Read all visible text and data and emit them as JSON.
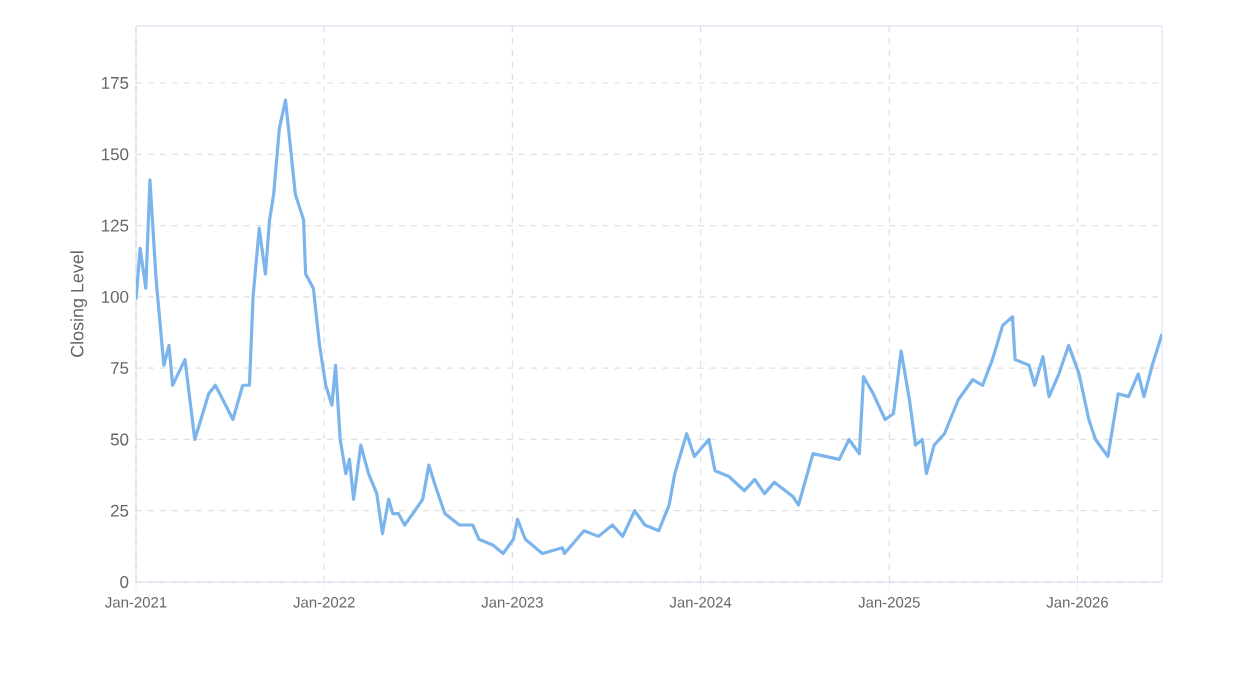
{
  "chart_data": {
    "type": "line",
    "ylabel": "Closing Level",
    "grid": true,
    "marker": "none",
    "line_style": "solid",
    "xlim": [
      "2021-01-01",
      "2026-06-14"
    ],
    "ylim": [
      0,
      195
    ],
    "xticks": [
      {
        "value": "2021-01-01",
        "label": "Jan-2021"
      },
      {
        "value": "2022-01-01",
        "label": "Jan-2022"
      },
      {
        "value": "2023-01-01",
        "label": "Jan-2023"
      },
      {
        "value": "2024-01-01",
        "label": "Jan-2024"
      },
      {
        "value": "2025-01-01",
        "label": "Jan-2025"
      },
      {
        "value": "2026-01-01",
        "label": "Jan-2026"
      }
    ],
    "yticks": [
      0,
      25,
      50,
      75,
      100,
      125,
      150,
      175
    ],
    "x": [
      "2021-01-01",
      "2021-01-09",
      "2021-01-20",
      "2021-01-28",
      "2021-02-09",
      "2021-02-24",
      "2021-03-06",
      "2021-03-13",
      "2021-04-06",
      "2021-04-25",
      "2021-05-22",
      "2021-06-04",
      "2021-07-08",
      "2021-07-27",
      "2021-08-09",
      "2021-08-16",
      "2021-08-28",
      "2021-09-09",
      "2021-09-17",
      "2021-09-25",
      "2021-10-06",
      "2021-10-18",
      "2021-10-29",
      "2021-11-06",
      "2021-11-22",
      "2021-11-26",
      "2021-12-11",
      "2021-12-23",
      "2022-01-04",
      "2022-01-16",
      "2022-01-23",
      "2022-02-01",
      "2022-02-12",
      "2022-02-19",
      "2022-02-27",
      "2022-03-13",
      "2022-03-28",
      "2022-04-13",
      "2022-04-24",
      "2022-05-06",
      "2022-05-14",
      "2022-05-25",
      "2022-06-06",
      "2022-06-22",
      "2022-07-11",
      "2022-07-23",
      "2022-08-04",
      "2022-08-23",
      "2022-09-20",
      "2022-10-16",
      "2022-10-28",
      "2022-11-24",
      "2022-12-14",
      "2023-01-03",
      "2023-01-11",
      "2023-01-26",
      "2023-02-28",
      "2023-04-08",
      "2023-04-12",
      "2023-05-20",
      "2023-06-17",
      "2023-07-14",
      "2023-08-03",
      "2023-08-26",
      "2023-09-15",
      "2023-10-12",
      "2023-11-01",
      "2023-11-12",
      "2023-12-05",
      "2023-12-20",
      "2024-01-17",
      "2024-01-29",
      "2024-02-25",
      "2024-03-26",
      "2024-04-15",
      "2024-05-04",
      "2024-05-23",
      "2024-06-28",
      "2024-07-09",
      "2024-08-06",
      "2024-09-26",
      "2024-10-15",
      "2024-11-04",
      "2024-11-12",
      "2024-12-01",
      "2024-12-24",
      "2025-01-09",
      "2025-01-24",
      "2025-02-09",
      "2025-02-21",
      "2025-03-06",
      "2025-03-14",
      "2025-03-29",
      "2025-04-18",
      "2025-05-15",
      "2025-06-12",
      "2025-07-01",
      "2025-07-20",
      "2025-08-09",
      "2025-08-28",
      "2025-09-02",
      "2025-09-29",
      "2025-10-10",
      "2025-10-26",
      "2025-11-07",
      "2025-11-26",
      "2025-12-15",
      "2026-01-04",
      "2026-01-23",
      "2026-02-05",
      "2026-03-01",
      "2026-03-21",
      "2026-04-10",
      "2026-04-29",
      "2026-05-10",
      "2026-05-26",
      "2026-06-14"
    ],
    "series": [
      {
        "color": "#7cb5ec",
        "values": [
          99,
          117,
          103,
          141,
          106,
          76,
          83,
          69,
          78,
          50,
          66,
          69,
          57,
          69,
          69,
          100,
          124,
          108,
          127,
          136,
          159,
          169,
          150,
          136,
          127,
          108,
          103,
          83,
          69,
          62,
          76,
          50,
          38,
          43,
          29,
          48,
          38,
          31,
          17,
          29,
          24,
          24,
          20,
          24,
          29,
          41,
          34,
          24,
          20,
          20,
          15,
          13,
          10,
          15,
          22,
          15,
          10,
          12,
          10,
          18,
          16,
          20,
          16,
          25,
          20,
          18,
          27,
          38,
          52,
          44,
          50,
          39,
          37,
          32,
          36,
          31,
          35,
          30,
          27,
          45,
          43,
          50,
          45,
          72,
          66,
          57,
          59,
          81,
          64,
          48,
          50,
          38,
          48,
          52,
          64,
          71,
          69,
          78,
          90,
          93,
          78,
          76,
          69,
          79,
          65,
          73,
          83,
          73,
          57,
          50,
          44,
          66,
          65,
          73,
          65,
          76,
          87
        ]
      }
    ]
  }
}
